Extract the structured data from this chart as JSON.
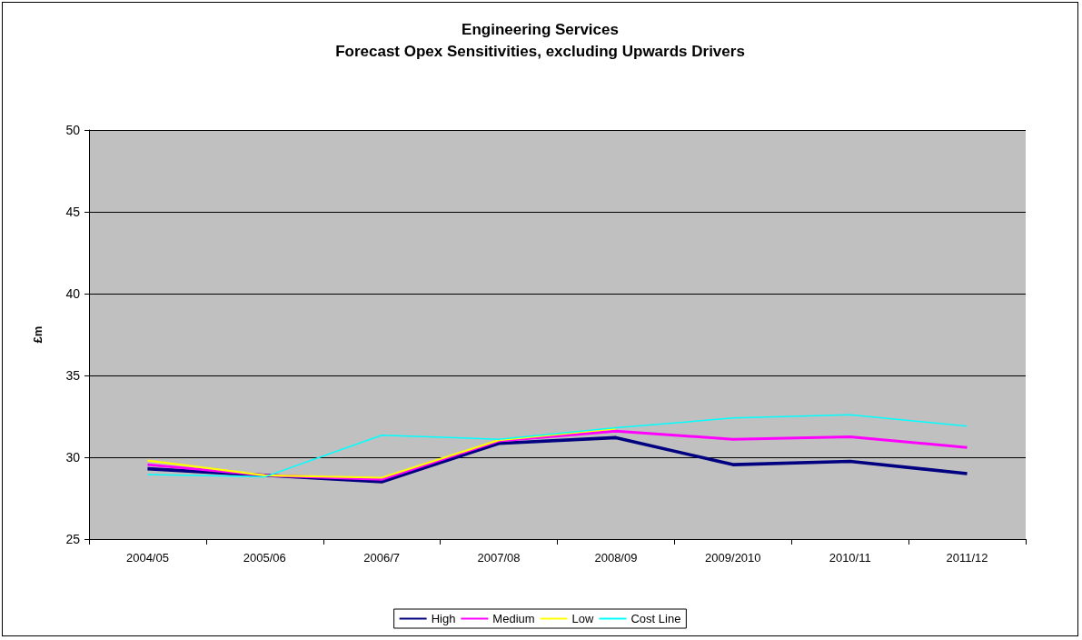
{
  "chart_data": {
    "type": "line",
    "title": "Engineering Services\nForecast Opex Sensitivities, excluding Upwards Drivers",
    "ylabel": "£m",
    "categories": [
      "2004/05",
      "2005/06",
      "2006/7",
      "2007/08",
      "2008/09",
      "2009/2010",
      "2010/11",
      "2011/12"
    ],
    "series": [
      {
        "name": "High",
        "color": "#000080",
        "values": [
          29.3,
          28.9,
          28.5,
          30.85,
          31.2,
          29.55,
          29.75,
          29.0
        ]
      },
      {
        "name": "Medium",
        "color": "#ff00ff",
        "values": [
          29.55,
          28.9,
          28.65,
          31.0,
          31.6,
          31.1,
          31.25,
          30.6
        ]
      },
      {
        "name": "Low",
        "color": "#ffff00",
        "values": [
          29.8,
          28.9,
          28.75,
          31.05,
          31.75,
          null,
          null,
          null
        ]
      },
      {
        "name": "Cost Line",
        "color": "#00ffff",
        "values": [
          28.95,
          28.8,
          31.35,
          31.1,
          31.8,
          32.4,
          32.6,
          31.9
        ]
      }
    ],
    "ylim": [
      25,
      50
    ],
    "yticks": [
      25,
      30,
      35,
      40,
      45,
      50
    ],
    "grid": "y",
    "legend": "bottom",
    "marker": "none",
    "line_style": "solid"
  }
}
